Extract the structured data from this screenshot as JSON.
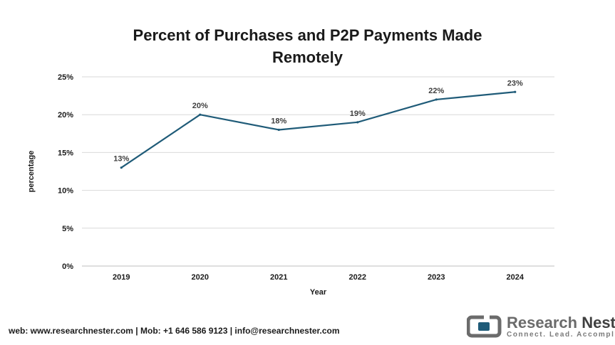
{
  "chart_data": {
    "type": "line",
    "title_lines": [
      "Percent of Purchases and P2P Payments Made",
      "Remotely"
    ],
    "xlabel": "Year",
    "ylabel": "percentage",
    "categories": [
      "2019",
      "2020",
      "2021",
      "2022",
      "2023",
      "2024"
    ],
    "series": [
      {
        "values": [
          13,
          20,
          18,
          19,
          22,
          23
        ],
        "color": "#1f5b78"
      }
    ],
    "data_labels": [
      "13%",
      "20%",
      "18%",
      "19%",
      "22%",
      "23%"
    ],
    "ylim": [
      0,
      25
    ],
    "yticks": [
      0,
      5,
      10,
      15,
      20,
      25
    ],
    "ytick_labels": [
      "0%",
      "5%",
      "10%",
      "15%",
      "20%",
      "25%"
    ],
    "grid": true,
    "legend": "none"
  },
  "footer": {
    "contact": "web: www.researchnester.com | Mob: +1 646 586 9123 | info@researchnester.com"
  },
  "logo": {
    "name_light": "Research",
    "name_strong": "Nester",
    "tagline": "Connect. Lead. Accomplish"
  },
  "colors": {
    "line": "#1f5b78",
    "grid": "#d9d9d9",
    "text": "#1a1a1a",
    "data_label": "#404040"
  }
}
